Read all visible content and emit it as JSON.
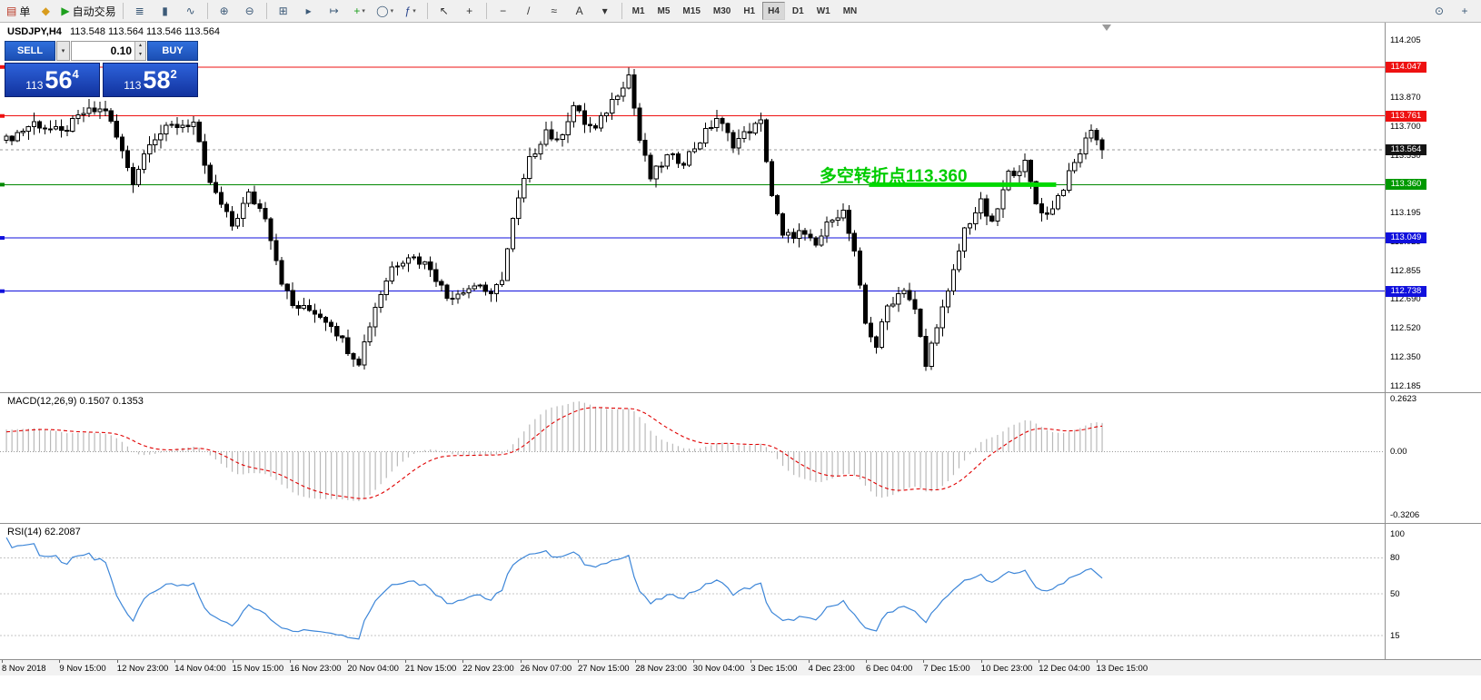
{
  "toolbar": {
    "buttons": [
      {
        "name": "new-order",
        "glyph": "▤",
        "label": "单",
        "color": "#b8321f"
      },
      {
        "name": "charts-window",
        "glyph": "◆",
        "color": "#d89c1e"
      },
      {
        "name": "autotrading",
        "glyph": "▶",
        "label": "自动交易",
        "color": "#1ea01e"
      },
      {
        "sep": true
      },
      {
        "name": "bar-chart",
        "glyph": "≣",
        "color": "#3c5a78"
      },
      {
        "name": "candlestick-chart",
        "glyph": "▮",
        "color": "#3c5a78"
      },
      {
        "name": "line-chart",
        "glyph": "∿",
        "color": "#3c5a78"
      },
      {
        "sep": true
      },
      {
        "name": "zoom-in",
        "glyph": "⊕",
        "color": "#3c5a78"
      },
      {
        "name": "zoom-out",
        "glyph": "⊖",
        "color": "#3c5a78"
      },
      {
        "sep": true
      },
      {
        "name": "grid",
        "glyph": "⊞",
        "color": "#3c5a78"
      },
      {
        "name": "auto-scroll",
        "glyph": "▸",
        "color": "#3c5a78"
      },
      {
        "name": "chart-shift",
        "glyph": "↦",
        "color": "#3c5a78"
      },
      {
        "name": "new-chart",
        "glyph": "+",
        "color": "#1ea01e",
        "dropdown": true
      },
      {
        "name": "profiles",
        "glyph": "◯",
        "color": "#3c5a78",
        "dropdown": true
      },
      {
        "name": "indicators",
        "glyph": "ƒ",
        "color": "#28448c",
        "dropdown": true
      },
      {
        "sep": true
      },
      {
        "name": "cursor",
        "glyph": "↖",
        "color": "#333333"
      },
      {
        "name": "crosshair",
        "glyph": "+",
        "color": "#333333"
      },
      {
        "sep": true
      },
      {
        "name": "horizontal-line",
        "glyph": "−",
        "color": "#333333"
      },
      {
        "name": "trendline",
        "glyph": "/",
        "color": "#333333"
      },
      {
        "name": "fibonacci",
        "glyph": "≈",
        "color": "#333333"
      },
      {
        "name": "text-label",
        "glyph": "A",
        "color": "#333333"
      },
      {
        "name": "arrows",
        "glyph": "▾",
        "color": "#333333"
      },
      {
        "sep": true
      }
    ],
    "timeframes": [
      "M1",
      "M5",
      "M15",
      "M30",
      "H1",
      "H4",
      "D1",
      "W1",
      "MN"
    ],
    "active_timeframe": "H4",
    "right_buttons": [
      {
        "name": "magnifier",
        "glyph": "⊙",
        "color": "#3c5a78"
      },
      {
        "name": "crosshair-tool",
        "glyph": "+",
        "color": "#3c5a78"
      }
    ]
  },
  "chart": {
    "title_symbol": "USDJPY,H4",
    "title_values": "113.548 113.564 113.546 113.564"
  },
  "trade_panel": {
    "sell_label": "SELL",
    "buy_label": "BUY",
    "volume": "0.10",
    "sell_price_prefix": "113",
    "sell_price_big": "56",
    "sell_price_sup": "4",
    "buy_price_prefix": "113",
    "buy_price_big": "58",
    "buy_price_sup": "2"
  },
  "icons": {
    "dropdown": "▾",
    "spinner_up": "▴",
    "spinner_down": "▾"
  },
  "annotation": {
    "text": "多空转折点113.360",
    "color": "#00cc00"
  },
  "price_scale": {
    "ticks": [
      "114.205",
      "114.035",
      "113.870",
      "113.700",
      "113.530",
      "113.360",
      "113.195",
      "113.025",
      "112.855",
      "112.690",
      "112.520",
      "112.350",
      "112.185"
    ],
    "marked": [
      {
        "text": "114.047",
        "price": 114.047,
        "bg": "#ee1111"
      },
      {
        "text": "113.761",
        "price": 113.761,
        "bg": "#ee1111"
      },
      {
        "text": "113.564",
        "price": 113.564,
        "bg": "#141414"
      },
      {
        "text": "113.360",
        "price": 113.36,
        "bg": "#009900"
      },
      {
        "text": "113.049",
        "price": 113.049,
        "bg": "#1111dd"
      },
      {
        "text": "112.738",
        "price": 112.738,
        "bg": "#1111dd"
      }
    ]
  },
  "macd_panel": {
    "label": "MACD(12,26,9) 0.1507 0.1353",
    "scale_top": "0.2623",
    "scale_zero": "0.00",
    "scale_bottom": "-0.3206"
  },
  "rsi_panel": {
    "label": "RSI(14) 62.2087",
    "scale_100": "100",
    "scale_80": "80",
    "scale_50": "50",
    "scale_15": "15"
  },
  "time_axis": {
    "labels": [
      "8 Nov 2018",
      "9 Nov 15:00",
      "12 Nov 23:00",
      "14 Nov 04:00",
      "15 Nov 15:00",
      "16 Nov 23:00",
      "20 Nov 04:00",
      "21 Nov 15:00",
      "22 Nov 23:00",
      "26 Nov 07:00",
      "27 Nov 15:00",
      "28 Nov 23:00",
      "30 Nov 04:00",
      "3 Dec 15:00",
      "4 Dec 23:00",
      "6 Dec 04:00",
      "7 Dec 15:00",
      "10 Dec 23:00",
      "12 Dec 04:00",
      "13 Dec 15:00"
    ]
  },
  "chart_data": {
    "type": "candlestick",
    "symbol": "USDJPY",
    "timeframe": "H4",
    "ohlc_display": {
      "open": 113.548,
      "high": 113.564,
      "low": 113.546,
      "close": 113.564
    },
    "last_price": 113.564,
    "y_axis": {
      "min": 112.185,
      "max": 114.205,
      "tick_step": 0.17
    },
    "candle_count": 200,
    "price_path": [
      [
        0,
        113.62
      ],
      [
        5,
        113.72
      ],
      [
        10,
        113.66
      ],
      [
        14,
        113.78
      ],
      [
        18,
        113.8
      ],
      [
        21,
        113.55
      ],
      [
        23,
        113.38
      ],
      [
        26,
        113.62
      ],
      [
        30,
        113.7
      ],
      [
        34,
        113.72
      ],
      [
        36,
        113.45
      ],
      [
        38,
        113.3
      ],
      [
        41,
        113.12
      ],
      [
        44,
        113.3
      ],
      [
        47,
        113.18
      ],
      [
        50,
        112.8
      ],
      [
        52,
        112.65
      ],
      [
        56,
        112.62
      ],
      [
        59,
        112.55
      ],
      [
        62,
        112.4
      ],
      [
        64,
        112.33
      ],
      [
        67,
        112.65
      ],
      [
        70,
        112.88
      ],
      [
        73,
        112.95
      ],
      [
        77,
        112.88
      ],
      [
        80,
        112.7
      ],
      [
        83,
        112.75
      ],
      [
        86,
        112.78
      ],
      [
        88,
        112.7
      ],
      [
        90,
        112.82
      ],
      [
        92,
        113.15
      ],
      [
        95,
        113.5
      ],
      [
        98,
        113.68
      ],
      [
        100,
        113.6
      ],
      [
        103,
        113.82
      ],
      [
        105,
        113.72
      ],
      [
        107,
        113.68
      ],
      [
        110,
        113.85
      ],
      [
        113,
        114.0
      ],
      [
        115,
        113.62
      ],
      [
        117,
        113.4
      ],
      [
        120,
        113.52
      ],
      [
        123,
        113.5
      ],
      [
        126,
        113.62
      ],
      [
        129,
        113.75
      ],
      [
        132,
        113.6
      ],
      [
        135,
        113.68
      ],
      [
        137,
        113.72
      ],
      [
        139,
        113.3
      ],
      [
        141,
        113.05
      ],
      [
        144,
        113.08
      ],
      [
        147,
        113.0
      ],
      [
        150,
        113.18
      ],
      [
        152,
        113.2
      ],
      [
        154,
        112.95
      ],
      [
        156,
        112.55
      ],
      [
        158,
        112.42
      ],
      [
        160,
        112.65
      ],
      [
        163,
        112.76
      ],
      [
        165,
        112.62
      ],
      [
        167,
        112.3
      ],
      [
        169,
        112.55
      ],
      [
        171,
        112.72
      ],
      [
        174,
        113.1
      ],
      [
        177,
        113.25
      ],
      [
        179,
        113.12
      ],
      [
        182,
        113.42
      ],
      [
        185,
        113.48
      ],
      [
        187,
        113.25
      ],
      [
        189,
        113.18
      ],
      [
        192,
        113.35
      ],
      [
        195,
        113.55
      ],
      [
        197,
        113.68
      ],
      [
        199,
        113.564
      ]
    ],
    "horizontal_levels": [
      {
        "price": 114.047,
        "color": "#ee1111",
        "width": 1
      },
      {
        "price": 113.761,
        "color": "#ee1111",
        "width": 1
      },
      {
        "price": 113.36,
        "color": "#008800",
        "width": 1,
        "highlight": {
          "from_candle": 157,
          "to_candle": 191,
          "color": "#00d800",
          "width": 5
        }
      },
      {
        "price": 113.049,
        "color": "#1111dd",
        "width": 1
      },
      {
        "price": 112.738,
        "color": "#1111dd",
        "width": 1
      }
    ],
    "bid_line": {
      "price": 113.564,
      "color": "#9a9a9a",
      "style": "dashed"
    },
    "annotation": {
      "text": "多空转折点113.360",
      "candle_index": 148,
      "price": 113.5
    },
    "indicators": [
      {
        "name": "MACD",
        "params": [
          12,
          26,
          9
        ],
        "display_values": [
          0.1507,
          0.1353
        ],
        "range": [
          -0.3206,
          0.2623
        ]
      },
      {
        "name": "RSI",
        "params": [
          14
        ],
        "display_value": 62.2087,
        "levels": [
          15,
          50,
          80
        ],
        "range": [
          0,
          100
        ]
      }
    ]
  }
}
